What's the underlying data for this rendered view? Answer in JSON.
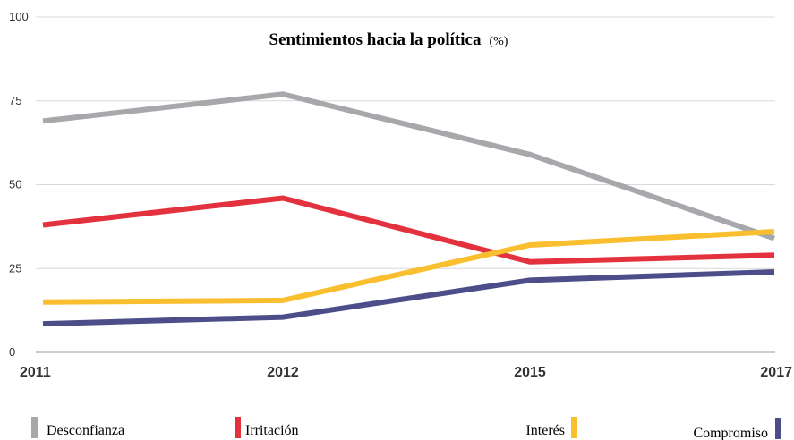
{
  "chart_data": {
    "type": "line",
    "title": "Sentimientos hacia la política",
    "title_unit": "(%)",
    "xlabel": "",
    "ylabel": "",
    "categories": [
      "2011",
      "2012",
      "2015",
      "2017"
    ],
    "yticks": [
      "0",
      "25",
      "50",
      "75",
      "100"
    ],
    "ylim": [
      0,
      100
    ],
    "grid": true,
    "legend_position": "bottom",
    "series": [
      {
        "name": "Desconfianza",
        "color": "#a6a8ab",
        "values": [
          69,
          77,
          59,
          34
        ]
      },
      {
        "name": "Irritación",
        "color": "#e4313e",
        "values": [
          38,
          46,
          27,
          29
        ]
      },
      {
        "name": "Interés",
        "color": "#f9bf2e",
        "values": [
          15,
          15.5,
          32,
          36
        ]
      },
      {
        "name": "Compromiso",
        "color": "#4c4e89",
        "values": [
          8.5,
          10.5,
          21.5,
          24
        ]
      }
    ]
  }
}
